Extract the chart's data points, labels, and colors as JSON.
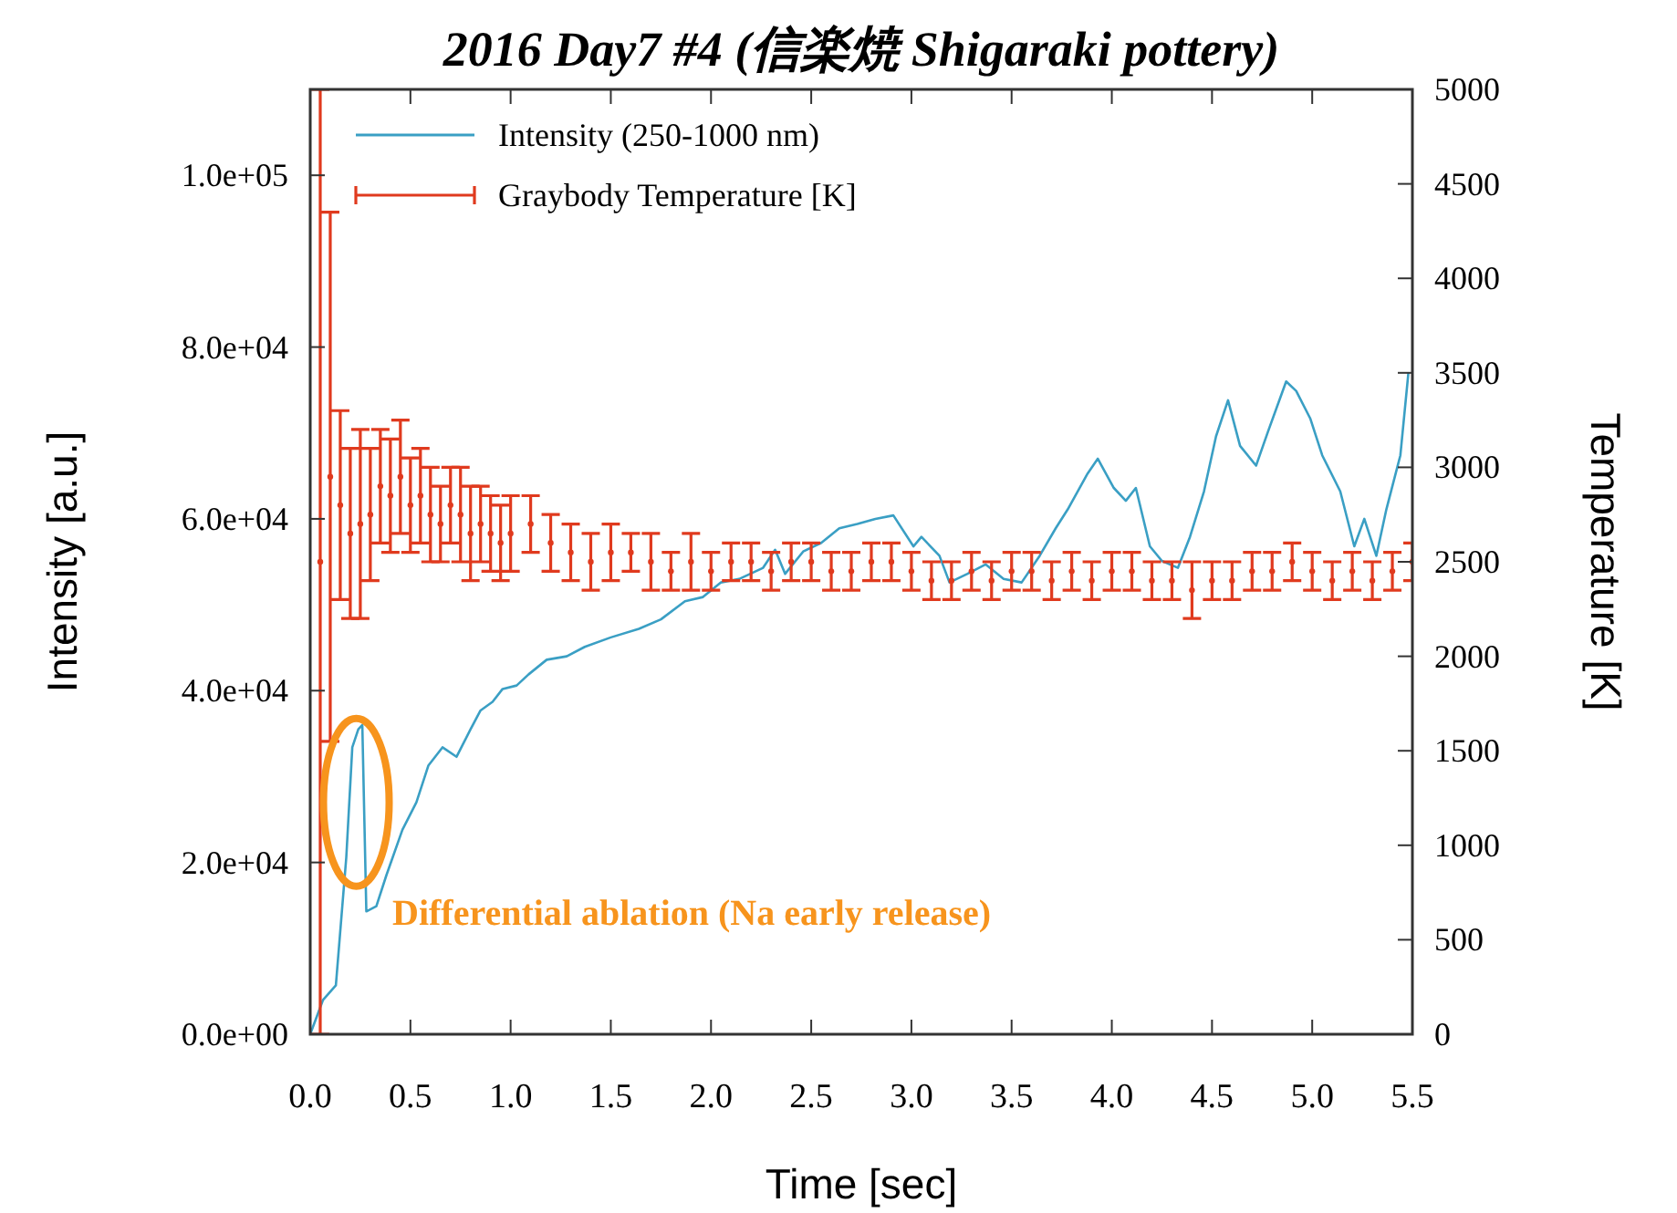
{
  "chart_data": {
    "type": "line",
    "title": "2016 Day7 #4 (信楽焼 Shigaraki pottery)",
    "xlabel": "Time [sec]",
    "ylabel": "Intensity [a.u.]",
    "y2label": "Temperature [K]",
    "annotations": [
      "Differential ablation (Na early release)"
    ],
    "xlim": [
      0,
      5.5
    ],
    "xticks": [
      {
        "value": 0,
        "label": "0.0"
      },
      {
        "value": 0.5,
        "label": "0.5"
      },
      {
        "value": 1,
        "label": "1.0"
      },
      {
        "value": 1.5,
        "label": "1.5"
      },
      {
        "value": 2,
        "label": "2.0"
      },
      {
        "value": 2.5,
        "label": "2.5"
      },
      {
        "value": 3,
        "label": "3.0"
      },
      {
        "value": 3.5,
        "label": "3.5"
      },
      {
        "value": 4,
        "label": "4.0"
      },
      {
        "value": 4.5,
        "label": "4.5"
      },
      {
        "value": 5,
        "label": "5.0"
      },
      {
        "value": 5.5,
        "label": "5.5"
      }
    ],
    "ylim": [
      0,
      110000
    ],
    "yticks": [
      {
        "value": 0,
        "label": "0.0e+00"
      },
      {
        "value": 20000,
        "label": "2.0e+04"
      },
      {
        "value": 40000,
        "label": "4.0e+04"
      },
      {
        "value": 60000,
        "label": "6.0e+04"
      },
      {
        "value": 80000,
        "label": "8.0e+04"
      },
      {
        "value": 100000,
        "label": "1.0e+05"
      }
    ],
    "y2lim": [
      0,
      5000
    ],
    "y2ticks": [
      0,
      500,
      1000,
      1500,
      2000,
      2500,
      3000,
      3500,
      4000,
      4500,
      5000
    ],
    "grid": false,
    "legend": "top left",
    "series": [
      {
        "name": "Intensity (250-1000 nm)",
        "type": "line",
        "color": "#3a9fc4",
        "marker": "none",
        "x": [
          0,
          0.064,
          0.128,
          0.18,
          0.21,
          0.24,
          0.26,
          0.28,
          0.33,
          0.38,
          0.46,
          0.53,
          0.59,
          0.66,
          0.73,
          0.8,
          0.85,
          0.91,
          0.96,
          1.03,
          1.09,
          1.18,
          1.28,
          1.37,
          1.5,
          1.64,
          1.75,
          1.87,
          1.96,
          2.05,
          2.14,
          2.26,
          2.32,
          2.37,
          2.46,
          2.55,
          2.64,
          2.73,
          2.82,
          2.91,
          3.01,
          3.05,
          3.14,
          3.19,
          3.28,
          3.37,
          3.46,
          3.55,
          3.64,
          3.72,
          3.78,
          3.88,
          3.93,
          4.01,
          4.07,
          4.12,
          4.19,
          4.25,
          4.33,
          4.39,
          4.46,
          4.52,
          4.58,
          4.64,
          4.72,
          4.78,
          4.87,
          4.92,
          4.99,
          5.05,
          5.14,
          5.21,
          5.26,
          5.32,
          5.37,
          5.44,
          5.48
        ],
        "values": [
          0,
          4000,
          5700,
          20600,
          33400,
          35500,
          36000,
          14300,
          14900,
          18500,
          23800,
          27000,
          31300,
          33400,
          32300,
          35500,
          37700,
          38700,
          40200,
          40600,
          41900,
          43600,
          44000,
          45100,
          46200,
          47200,
          48300,
          50400,
          50900,
          52600,
          53000,
          54300,
          56400,
          53600,
          56200,
          57200,
          58900,
          59400,
          60000,
          60400,
          56800,
          57900,
          55700,
          52600,
          53600,
          54700,
          53000,
          52600,
          55700,
          58900,
          61100,
          65300,
          67000,
          63600,
          62100,
          63600,
          56800,
          55100,
          54300,
          57900,
          63200,
          69600,
          73800,
          68500,
          66200,
          70200,
          76000,
          74900,
          71700,
          67400,
          63200,
          56800,
          60000,
          55700,
          61100,
          67400,
          77000
        ]
      },
      {
        "name": "Graybody Temperature [K]",
        "type": "scatter",
        "axis": "y2",
        "color": "#e03a1e",
        "marker": "circle",
        "x": [
          0.05,
          0.1,
          0.15,
          0.2,
          0.25,
          0.3,
          0.35,
          0.4,
          0.45,
          0.5,
          0.55,
          0.6,
          0.65,
          0.7,
          0.75,
          0.8,
          0.85,
          0.9,
          0.95,
          1.0,
          1.1,
          1.2,
          1.3,
          1.4,
          1.5,
          1.6,
          1.7,
          1.8,
          1.9,
          2.0,
          2.1,
          2.2,
          2.3,
          2.4,
          2.5,
          2.6,
          2.7,
          2.8,
          2.9,
          3.0,
          3.1,
          3.2,
          3.3,
          3.4,
          3.5,
          3.6,
          3.7,
          3.8,
          3.9,
          4.0,
          4.1,
          4.2,
          4.3,
          4.4,
          4.5,
          4.6,
          4.7,
          4.8,
          4.9,
          5.0,
          5.1,
          5.2,
          5.3,
          5.4,
          5.5
        ],
        "values": [
          2500,
          2950,
          2800,
          2650,
          2700,
          2750,
          2900,
          2850,
          2950,
          2800,
          2850,
          2750,
          2700,
          2800,
          2750,
          2650,
          2700,
          2650,
          2600,
          2650,
          2700,
          2600,
          2550,
          2500,
          2550,
          2550,
          2500,
          2450,
          2500,
          2450,
          2500,
          2500,
          2450,
          2500,
          2500,
          2450,
          2450,
          2500,
          2500,
          2450,
          2400,
          2400,
          2450,
          2400,
          2450,
          2450,
          2400,
          2450,
          2400,
          2450,
          2450,
          2400,
          2400,
          2350,
          2400,
          2400,
          2450,
          2450,
          2500,
          2450,
          2400,
          2450,
          2400,
          2450,
          2500
        ],
        "errors": [
          2500,
          1400,
          500,
          450,
          500,
          350,
          300,
          300,
          300,
          250,
          250,
          250,
          200,
          200,
          250,
          250,
          200,
          200,
          200,
          200,
          150,
          150,
          150,
          150,
          150,
          100,
          150,
          100,
          150,
          100,
          100,
          100,
          100,
          100,
          100,
          100,
          100,
          100,
          100,
          100,
          100,
          100,
          100,
          100,
          100,
          100,
          100,
          100,
          100,
          100,
          100,
          100,
          100,
          150,
          100,
          100,
          100,
          100,
          100,
          100,
          100,
          100,
          100,
          100,
          100
        ]
      }
    ]
  }
}
